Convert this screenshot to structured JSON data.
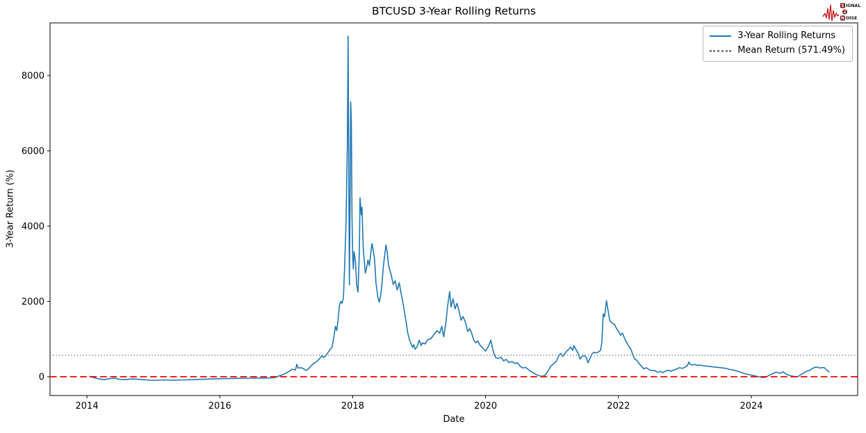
{
  "page": {
    "background": "#ffffff"
  },
  "logo": {
    "name": "signal-2-noise-logo",
    "row1_boxed": "S",
    "row1_text": "IGNAL",
    "row2_boxed": "2",
    "row3_boxed": "N",
    "row3_text": "OISE",
    "waveform_color": "#c41215",
    "box_color": "#7a1012",
    "text_color": "#1a1a1a"
  },
  "chart_data": {
    "type": "line",
    "title": "BTCUSD 3-Year Rolling Returns",
    "xlabel": "Date",
    "ylabel": "3-Year Return (%)",
    "xlim": [
      2013.445,
      2025.6
    ],
    "ylim": [
      -500,
      9400
    ],
    "xticks": [
      2014,
      2016,
      2018,
      2020,
      2022,
      2024
    ],
    "yticks": [
      0,
      2000,
      4000,
      6000,
      8000
    ],
    "grid": false,
    "mean_return_pct": 571.49,
    "legend": {
      "position": "upper-right",
      "entries": [
        {
          "label": "3-Year Rolling Returns",
          "style": "solid",
          "color": "#1f77b4"
        },
        {
          "label": "Mean Return (571.49%)",
          "style": "dotted",
          "color": "#7f7f7f"
        }
      ]
    },
    "reference_lines": [
      {
        "name": "mean-return-line",
        "value": 571.49,
        "color": "#8c8c8c",
        "style": "dotted",
        "width": 1.6
      },
      {
        "name": "zero-line",
        "value": 0,
        "color": "#ff0000",
        "style": "dashed",
        "width": 1.7
      }
    ],
    "series": [
      {
        "name": "3-Year Rolling Returns",
        "color": "#1f77b4",
        "width": 1.6,
        "points": [
          [
            2014.04,
            10
          ],
          [
            2014.08,
            -15
          ],
          [
            2014.16,
            -50
          ],
          [
            2014.26,
            -80
          ],
          [
            2014.31,
            -60
          ],
          [
            2014.42,
            -40
          ],
          [
            2014.49,
            -70
          ],
          [
            2014.6,
            -75
          ],
          [
            2014.68,
            -55
          ],
          [
            2014.79,
            -70
          ],
          [
            2014.94,
            -90
          ],
          [
            2015.05,
            -95
          ],
          [
            2015.15,
            -85
          ],
          [
            2015.31,
            -90
          ],
          [
            2015.47,
            -85
          ],
          [
            2015.62,
            -75
          ],
          [
            2015.78,
            -65
          ],
          [
            2015.94,
            -55
          ],
          [
            2016.09,
            -50
          ],
          [
            2016.25,
            -45
          ],
          [
            2016.41,
            -40
          ],
          [
            2016.57,
            -35
          ],
          [
            2016.72,
            -35
          ],
          [
            2016.83,
            -25
          ],
          [
            2016.88,
            15
          ],
          [
            2016.93,
            40
          ],
          [
            2016.98,
            80
          ],
          [
            2017.04,
            140
          ],
          [
            2017.09,
            200
          ],
          [
            2017.14,
            180
          ],
          [
            2017.16,
            330
          ],
          [
            2017.18,
            230
          ],
          [
            2017.23,
            240
          ],
          [
            2017.27,
            200
          ],
          [
            2017.3,
            165
          ],
          [
            2017.34,
            220
          ],
          [
            2017.38,
            300
          ],
          [
            2017.42,
            360
          ],
          [
            2017.47,
            420
          ],
          [
            2017.51,
            500
          ],
          [
            2017.54,
            560
          ],
          [
            2017.56,
            510
          ],
          [
            2017.59,
            545
          ],
          [
            2017.62,
            620
          ],
          [
            2017.65,
            700
          ],
          [
            2017.69,
            790
          ],
          [
            2017.72,
            1100
          ],
          [
            2017.74,
            1340
          ],
          [
            2017.76,
            1230
          ],
          [
            2017.78,
            1500
          ],
          [
            2017.8,
            1890
          ],
          [
            2017.82,
            2000
          ],
          [
            2017.84,
            1950
          ],
          [
            2017.86,
            2100
          ],
          [
            2017.88,
            3000
          ],
          [
            2017.9,
            4100
          ],
          [
            2017.92,
            6200
          ],
          [
            2017.93,
            9050
          ],
          [
            2017.94,
            5900
          ],
          [
            2017.95,
            2440
          ],
          [
            2017.96,
            4500
          ],
          [
            2017.97,
            7300
          ],
          [
            2017.98,
            6800
          ],
          [
            2017.99,
            4200
          ],
          [
            2018.0,
            3170
          ],
          [
            2018.01,
            2860
          ],
          [
            2018.02,
            3320
          ],
          [
            2018.04,
            3100
          ],
          [
            2018.06,
            2450
          ],
          [
            2018.08,
            2250
          ],
          [
            2018.1,
            3300
          ],
          [
            2018.11,
            4750
          ],
          [
            2018.13,
            4300
          ],
          [
            2018.14,
            4500
          ],
          [
            2018.16,
            3400
          ],
          [
            2018.19,
            2750
          ],
          [
            2018.21,
            2900
          ],
          [
            2018.23,
            3100
          ],
          [
            2018.25,
            2950
          ],
          [
            2018.27,
            3250
          ],
          [
            2018.29,
            3540
          ],
          [
            2018.31,
            3350
          ],
          [
            2018.33,
            3100
          ],
          [
            2018.35,
            2500
          ],
          [
            2018.38,
            2100
          ],
          [
            2018.4,
            1980
          ],
          [
            2018.42,
            2150
          ],
          [
            2018.44,
            2450
          ],
          [
            2018.46,
            2900
          ],
          [
            2018.48,
            3200
          ],
          [
            2018.5,
            3500
          ],
          [
            2018.52,
            3300
          ],
          [
            2018.54,
            2950
          ],
          [
            2018.58,
            2700
          ],
          [
            2018.61,
            2450
          ],
          [
            2018.64,
            2550
          ],
          [
            2018.67,
            2300
          ],
          [
            2018.7,
            2500
          ],
          [
            2018.73,
            2200
          ],
          [
            2018.76,
            1930
          ],
          [
            2018.8,
            1500
          ],
          [
            2018.83,
            1150
          ],
          [
            2018.86,
            950
          ],
          [
            2018.88,
            870
          ],
          [
            2018.9,
            780
          ],
          [
            2018.92,
            850
          ],
          [
            2018.94,
            730
          ],
          [
            2018.97,
            800
          ],
          [
            2019.0,
            970
          ],
          [
            2019.03,
            830
          ],
          [
            2019.05,
            900
          ],
          [
            2019.09,
            870
          ],
          [
            2019.12,
            960
          ],
          [
            2019.15,
            1000
          ],
          [
            2019.18,
            1010
          ],
          [
            2019.22,
            1120
          ],
          [
            2019.27,
            1220
          ],
          [
            2019.31,
            1160
          ],
          [
            2019.34,
            1340
          ],
          [
            2019.37,
            1060
          ],
          [
            2019.4,
            1400
          ],
          [
            2019.43,
            1900
          ],
          [
            2019.46,
            2260
          ],
          [
            2019.48,
            1850
          ],
          [
            2019.51,
            2070
          ],
          [
            2019.54,
            1800
          ],
          [
            2019.57,
            1950
          ],
          [
            2019.6,
            1750
          ],
          [
            2019.63,
            1500
          ],
          [
            2019.66,
            1600
          ],
          [
            2019.7,
            1430
          ],
          [
            2019.73,
            1200
          ],
          [
            2019.76,
            1280
          ],
          [
            2019.79,
            1160
          ],
          [
            2019.82,
            980
          ],
          [
            2019.85,
            900
          ],
          [
            2019.88,
            950
          ],
          [
            2019.92,
            830
          ],
          [
            2019.96,
            760
          ],
          [
            2020.0,
            680
          ],
          [
            2020.04,
            800
          ],
          [
            2020.08,
            970
          ],
          [
            2020.11,
            700
          ],
          [
            2020.15,
            510
          ],
          [
            2020.19,
            480
          ],
          [
            2020.23,
            520
          ],
          [
            2020.27,
            420
          ],
          [
            2020.31,
            460
          ],
          [
            2020.35,
            380
          ],
          [
            2020.4,
            400
          ],
          [
            2020.44,
            350
          ],
          [
            2020.48,
            370
          ],
          [
            2020.52,
            280
          ],
          [
            2020.56,
            230
          ],
          [
            2020.6,
            250
          ],
          [
            2020.65,
            180
          ],
          [
            2020.69,
            130
          ],
          [
            2020.73,
            90
          ],
          [
            2020.77,
            50
          ],
          [
            2020.82,
            20
          ],
          [
            2020.86,
            10
          ],
          [
            2020.9,
            50
          ],
          [
            2020.94,
            150
          ],
          [
            2020.98,
            280
          ],
          [
            2021.03,
            350
          ],
          [
            2021.07,
            420
          ],
          [
            2021.1,
            550
          ],
          [
            2021.13,
            620
          ],
          [
            2021.16,
            540
          ],
          [
            2021.19,
            600
          ],
          [
            2021.22,
            680
          ],
          [
            2021.26,
            740
          ],
          [
            2021.28,
            790
          ],
          [
            2021.31,
            700
          ],
          [
            2021.33,
            825
          ],
          [
            2021.36,
            720
          ],
          [
            2021.39,
            640
          ],
          [
            2021.42,
            470
          ],
          [
            2021.45,
            540
          ],
          [
            2021.49,
            560
          ],
          [
            2021.52,
            500
          ],
          [
            2021.54,
            370
          ],
          [
            2021.57,
            480
          ],
          [
            2021.6,
            600
          ],
          [
            2021.63,
            650
          ],
          [
            2021.66,
            630
          ],
          [
            2021.7,
            660
          ],
          [
            2021.73,
            700
          ],
          [
            2021.75,
            900
          ],
          [
            2021.77,
            1670
          ],
          [
            2021.79,
            1590
          ],
          [
            2021.82,
            2020
          ],
          [
            2021.84,
            1800
          ],
          [
            2021.87,
            1490
          ],
          [
            2021.91,
            1420
          ],
          [
            2021.94,
            1390
          ],
          [
            2021.97,
            1280
          ],
          [
            2022.0,
            1210
          ],
          [
            2022.03,
            1100
          ],
          [
            2022.06,
            1160
          ],
          [
            2022.09,
            1030
          ],
          [
            2022.13,
            880
          ],
          [
            2022.16,
            800
          ],
          [
            2022.19,
            720
          ],
          [
            2022.22,
            560
          ],
          [
            2022.25,
            460
          ],
          [
            2022.28,
            430
          ],
          [
            2022.31,
            350
          ],
          [
            2022.35,
            275
          ],
          [
            2022.38,
            210
          ],
          [
            2022.42,
            240
          ],
          [
            2022.46,
            185
          ],
          [
            2022.5,
            160
          ],
          [
            2022.54,
            170
          ],
          [
            2022.59,
            120
          ],
          [
            2022.63,
            140
          ],
          [
            2022.67,
            110
          ],
          [
            2022.71,
            150
          ],
          [
            2022.75,
            170
          ],
          [
            2022.79,
            150
          ],
          [
            2022.84,
            180
          ],
          [
            2022.88,
            210
          ],
          [
            2022.92,
            240
          ],
          [
            2022.96,
            220
          ],
          [
            2023.0,
            250
          ],
          [
            2023.04,
            300
          ],
          [
            2023.06,
            390
          ],
          [
            2023.08,
            330
          ],
          [
            2023.11,
            310
          ],
          [
            2023.15,
            330
          ],
          [
            2023.19,
            300
          ],
          [
            2023.23,
            310
          ],
          [
            2023.28,
            290
          ],
          [
            2023.33,
            280
          ],
          [
            2023.38,
            270
          ],
          [
            2023.43,
            260
          ],
          [
            2023.49,
            250
          ],
          [
            2023.54,
            240
          ],
          [
            2023.59,
            230
          ],
          [
            2023.64,
            210
          ],
          [
            2023.69,
            190
          ],
          [
            2023.75,
            170
          ],
          [
            2023.8,
            140
          ],
          [
            2023.85,
            110
          ],
          [
            2023.9,
            80
          ],
          [
            2023.96,
            55
          ],
          [
            2024.01,
            40
          ],
          [
            2024.06,
            20
          ],
          [
            2024.11,
            0
          ],
          [
            2024.17,
            -20
          ],
          [
            2024.22,
            -10
          ],
          [
            2024.27,
            40
          ],
          [
            2024.32,
            80
          ],
          [
            2024.37,
            120
          ],
          [
            2024.43,
            90
          ],
          [
            2024.48,
            130
          ],
          [
            2024.53,
            60
          ],
          [
            2024.58,
            30
          ],
          [
            2024.63,
            10
          ],
          [
            2024.67,
            -10
          ],
          [
            2024.71,
            10
          ],
          [
            2024.75,
            60
          ],
          [
            2024.79,
            100
          ],
          [
            2024.84,
            150
          ],
          [
            2024.88,
            170
          ],
          [
            2024.92,
            220
          ],
          [
            2024.96,
            250
          ],
          [
            2024.99,
            255
          ],
          [
            2025.03,
            230
          ],
          [
            2025.07,
            245
          ],
          [
            2025.1,
            240
          ],
          [
            2025.13,
            180
          ],
          [
            2025.17,
            130
          ]
        ]
      }
    ]
  }
}
